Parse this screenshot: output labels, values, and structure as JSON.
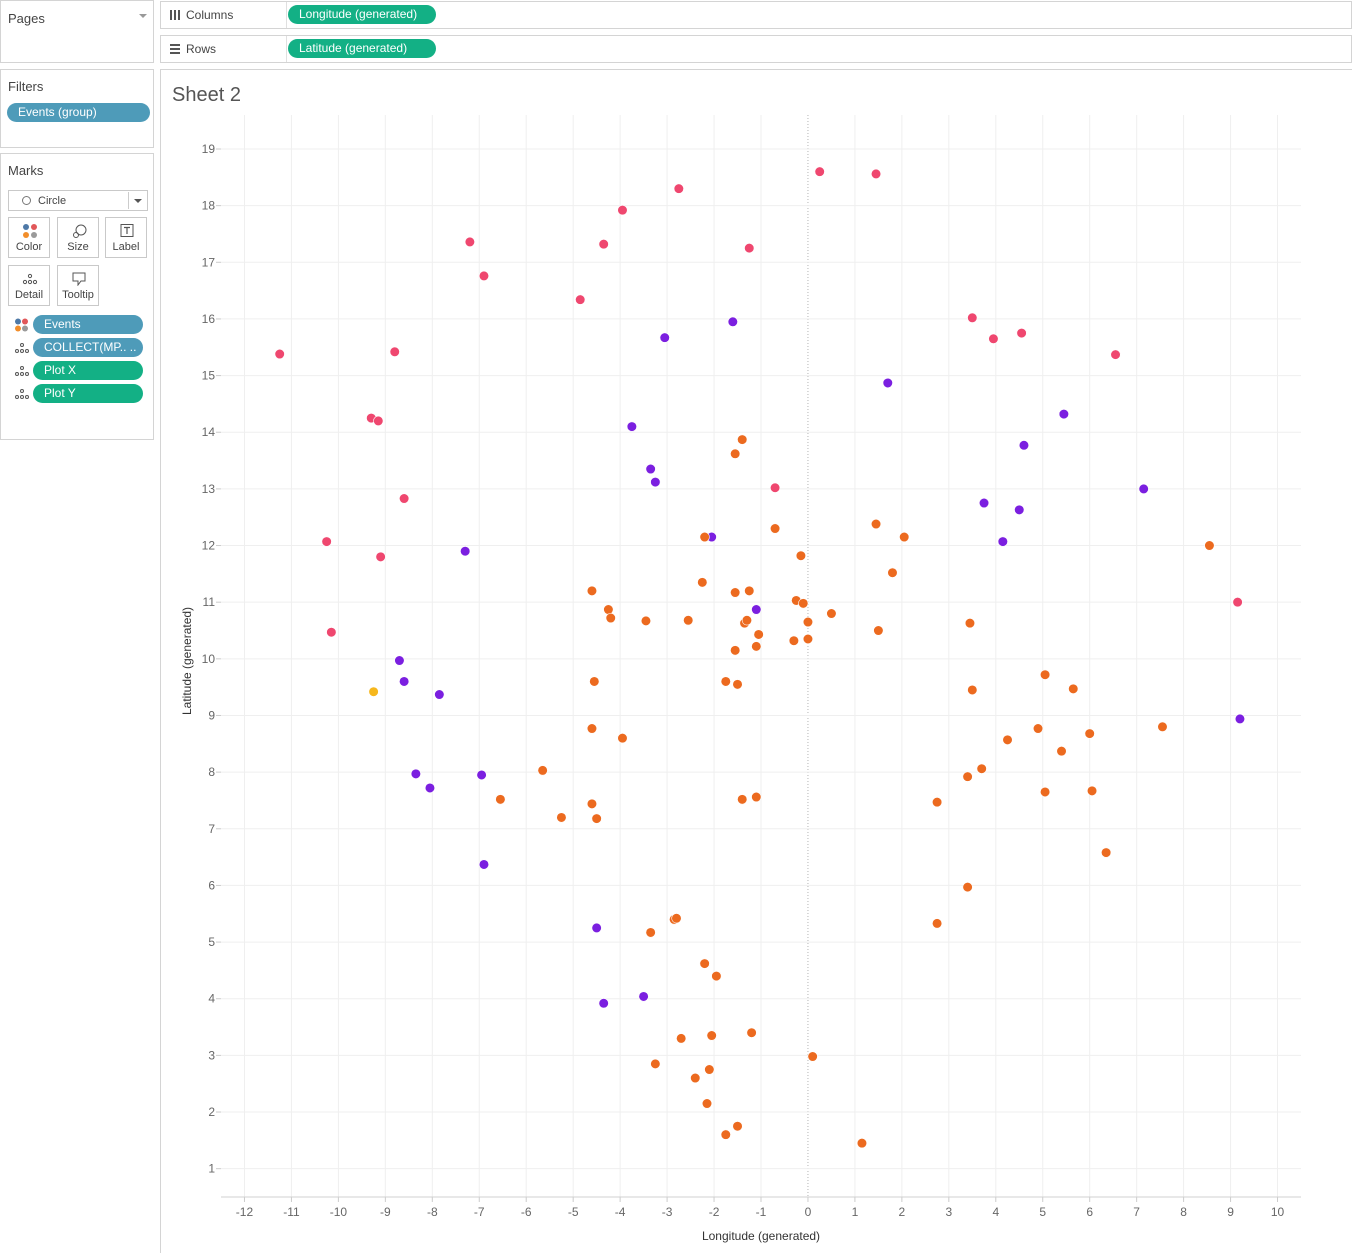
{
  "pages": {
    "title": "Pages"
  },
  "filters": {
    "title": "Filters",
    "pill": "Events (group)"
  },
  "marks": {
    "title": "Marks",
    "mark_type": "Circle",
    "buttons": {
      "color": "Color",
      "size": "Size",
      "label": "Label",
      "detail": "Detail",
      "tooltip": "Tooltip"
    },
    "fields": [
      {
        "label": "Events",
        "color": "#4e9bb9",
        "icon": "color-icon"
      },
      {
        "label": "COLLECT(MP.. ..",
        "color": "#4e9bb9",
        "icon": "detail-icon"
      },
      {
        "label": "Plot X",
        "color": "#13b085",
        "icon": "detail-icon"
      },
      {
        "label": "Plot Y",
        "color": "#13b085",
        "icon": "detail-icon"
      }
    ]
  },
  "columns": {
    "label": "Columns",
    "pill": "Longitude (generated)"
  },
  "rows": {
    "label": "Rows",
    "pill": "Latitude (generated)"
  },
  "sheet": {
    "title": "Sheet 2"
  },
  "colors": {
    "pink": "#ef476f",
    "purple": "#7b1fe0",
    "orange": "#ec6a1f",
    "yellow": "#f6b71c",
    "pill_blue": "#4e9bb9",
    "pill_green": "#13b085"
  },
  "chart_data": {
    "type": "scatter",
    "xlabel": "Longitude (generated)",
    "ylabel": "Latitude (generated)",
    "xlim": [
      -12.5,
      10.5
    ],
    "ylim": [
      0.5,
      19.6
    ],
    "xticks": [
      -12,
      -11,
      -10,
      -9,
      -8,
      -7,
      -6,
      -5,
      -4,
      -3,
      -2,
      -1,
      0,
      1,
      2,
      3,
      4,
      5,
      6,
      7,
      8,
      9,
      10
    ],
    "yticks": [
      1,
      2,
      3,
      4,
      5,
      6,
      7,
      8,
      9,
      10,
      11,
      12,
      13,
      14,
      15,
      16,
      17,
      18,
      19
    ],
    "grid": true,
    "zero_line_x": 0,
    "series": [
      {
        "color": "#ef476f",
        "x": [
          0.25,
          1.45,
          -2.75,
          -3.95,
          -7.2,
          -4.35,
          -1.25,
          -6.9,
          -4.85,
          3.5,
          3.95,
          4.55,
          6.55,
          -11.25,
          -8.8,
          -9.3,
          -9.15,
          -8.6,
          -10.25,
          -9.1,
          -10.15,
          -0.7,
          9.15
        ],
        "y": [
          18.6,
          18.56,
          18.3,
          17.92,
          17.36,
          17.32,
          17.25,
          16.76,
          16.34,
          16.02,
          15.65,
          15.75,
          15.37,
          15.38,
          15.42,
          14.25,
          14.2,
          12.83,
          12.07,
          11.8,
          10.47,
          13.02,
          11.0
        ]
      },
      {
        "color": "#7b1fe0",
        "x": [
          -1.6,
          -3.05,
          1.7,
          5.45,
          -3.75,
          4.6,
          -3.35,
          -3.25,
          7.15,
          3.75,
          4.5,
          4.15,
          -2.05,
          -7.3,
          -1.1,
          -8.7,
          -8.6,
          -7.85,
          9.2,
          -8.35,
          -6.95,
          -8.05,
          -6.9,
          -4.5,
          -4.35,
          -3.5
        ],
        "y": [
          15.95,
          15.67,
          14.87,
          14.32,
          14.1,
          13.77,
          13.35,
          13.12,
          13.0,
          12.75,
          12.63,
          12.07,
          12.15,
          11.9,
          10.87,
          9.97,
          9.6,
          9.37,
          8.94,
          7.97,
          7.95,
          7.72,
          6.37,
          5.25,
          3.92,
          4.04
        ]
      },
      {
        "color": "#ec6a1f",
        "x": [
          -1.4,
          -1.55,
          -0.7,
          1.45,
          2.05,
          -2.2,
          -0.15,
          1.8,
          8.55,
          -2.25,
          -4.6,
          -1.55,
          -1.25,
          -0.25,
          -0.1,
          -4.25,
          -4.2,
          -3.45,
          -2.55,
          0.5,
          -1.35,
          -1.3,
          0.0,
          1.5,
          3.45,
          -1.05,
          -0.3,
          0.0,
          -1.1,
          -1.55,
          5.05,
          -1.75,
          -1.5,
          -4.55,
          3.5,
          5.65,
          -4.6,
          4.9,
          -3.95,
          6.0,
          4.25,
          5.4,
          7.55,
          3.7,
          -5.65,
          -6.55,
          3.4,
          -4.6,
          -1.4,
          -1.1,
          2.75,
          -5.25,
          -4.5,
          5.05,
          6.05,
          6.35,
          3.4,
          -2.85,
          -2.8,
          2.75,
          -3.35,
          -2.2,
          -1.95,
          -2.7,
          -2.05,
          -1.2,
          0.1,
          -3.25,
          -2.1,
          -2.4,
          -2.15,
          -1.5,
          -1.75,
          1.15
        ],
        "y": [
          13.87,
          13.62,
          12.3,
          12.38,
          12.15,
          12.15,
          11.82,
          11.52,
          12.0,
          11.35,
          11.2,
          11.17,
          11.2,
          11.03,
          10.98,
          10.87,
          10.72,
          10.67,
          10.68,
          10.8,
          10.63,
          10.68,
          10.65,
          10.5,
          10.63,
          10.43,
          10.32,
          10.35,
          10.22,
          10.15,
          9.72,
          9.6,
          9.55,
          9.6,
          9.45,
          9.47,
          8.77,
          8.77,
          8.6,
          8.68,
          8.57,
          8.37,
          8.8,
          8.06,
          8.03,
          7.52,
          7.92,
          7.44,
          7.52,
          7.56,
          7.47,
          7.2,
          7.18,
          7.65,
          7.67,
          6.58,
          5.97,
          5.4,
          5.42,
          5.33,
          5.17,
          4.62,
          4.4,
          3.3,
          3.35,
          3.4,
          2.98,
          2.85,
          2.75,
          2.6,
          2.15,
          1.75,
          1.6,
          1.45
        ]
      },
      {
        "color": "#f6b71c",
        "x": [
          -9.25
        ],
        "y": [
          9.42
        ]
      }
    ]
  }
}
